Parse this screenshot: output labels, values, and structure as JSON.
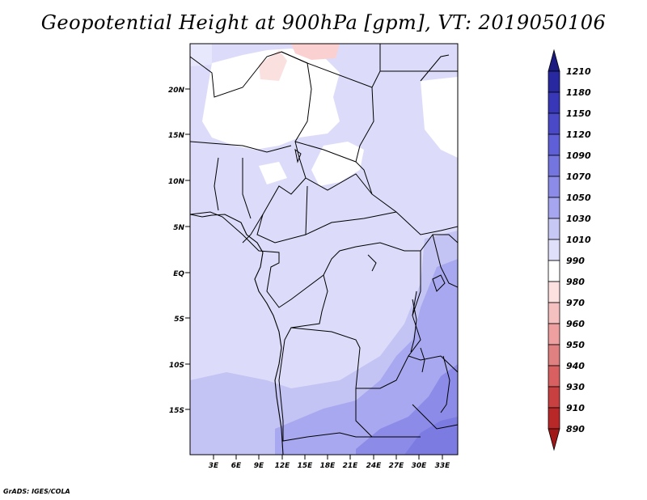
{
  "title": "Geopotential Height at 900hPa [gpm], VT: 2019050106",
  "credit": "GrADS: IGES/COLA",
  "map": {
    "lat_ticks": [
      "20N",
      "15N",
      "10N",
      "5N",
      "EQ",
      "5S",
      "10S",
      "15S"
    ],
    "lon_ticks": [
      "3E",
      "6E",
      "9E",
      "12E",
      "15E",
      "18E",
      "21E",
      "24E",
      "27E",
      "30E",
      "33E"
    ],
    "region": "Central Africa",
    "lon_range": [
      0,
      35
    ],
    "lat_range": [
      -20,
      25
    ]
  },
  "colorbar": {
    "levels": [
      "1210",
      "1180",
      "1150",
      "1120",
      "1090",
      "1070",
      "1050",
      "1030",
      "1010",
      "990",
      "980",
      "970",
      "960",
      "950",
      "940",
      "930",
      "910",
      "890"
    ],
    "colors": [
      "#1a1a80",
      "#2828a0",
      "#3737b8",
      "#4a4ac8",
      "#5f5fd8",
      "#7575e0",
      "#8c8ce8",
      "#a5a5f0",
      "#c8c8f5",
      "#e0e0fa",
      "#ffffff",
      "#fde0e0",
      "#f5c0c0",
      "#eea0a0",
      "#e08080",
      "#d86060",
      "#c84040",
      "#b82828",
      "#a01818"
    ]
  }
}
